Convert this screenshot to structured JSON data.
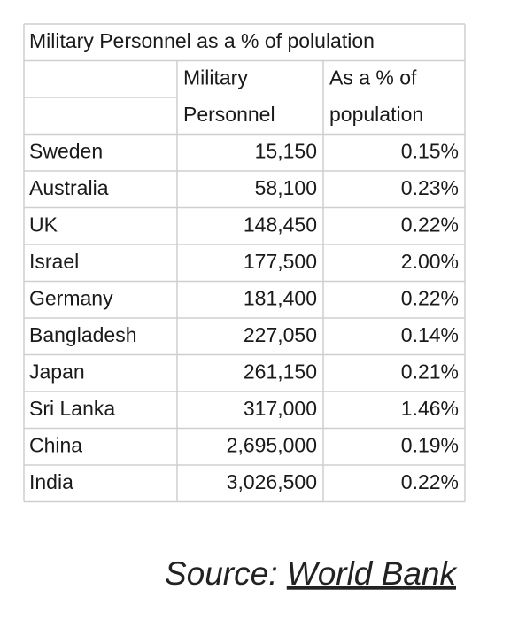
{
  "table": {
    "title": "Military Personnel as a % of polulation",
    "columns": [
      {
        "line1": "Military",
        "line2": "Personnel"
      },
      {
        "line1": "As a % of",
        "line2": "population"
      }
    ],
    "rows": [
      [
        "Sweden",
        "15,150",
        "0.15%"
      ],
      [
        "Australia",
        "58,100",
        "0.23%"
      ],
      [
        "UK",
        "148,450",
        "0.22%"
      ],
      [
        "Israel",
        "177,500",
        "2.00%"
      ],
      [
        "Germany",
        "181,400",
        "0.22%"
      ],
      [
        "Bangladesh",
        "227,050",
        "0.14%"
      ],
      [
        "Japan",
        "261,150",
        "0.21%"
      ],
      [
        "Sri Lanka",
        "317,000",
        "1.46%"
      ],
      [
        "China",
        "2,695,000",
        "0.19%"
      ],
      [
        "India",
        "3,026,500",
        "0.22%"
      ]
    ]
  },
  "source": {
    "label": "Source:",
    "link": "World Bank"
  }
}
